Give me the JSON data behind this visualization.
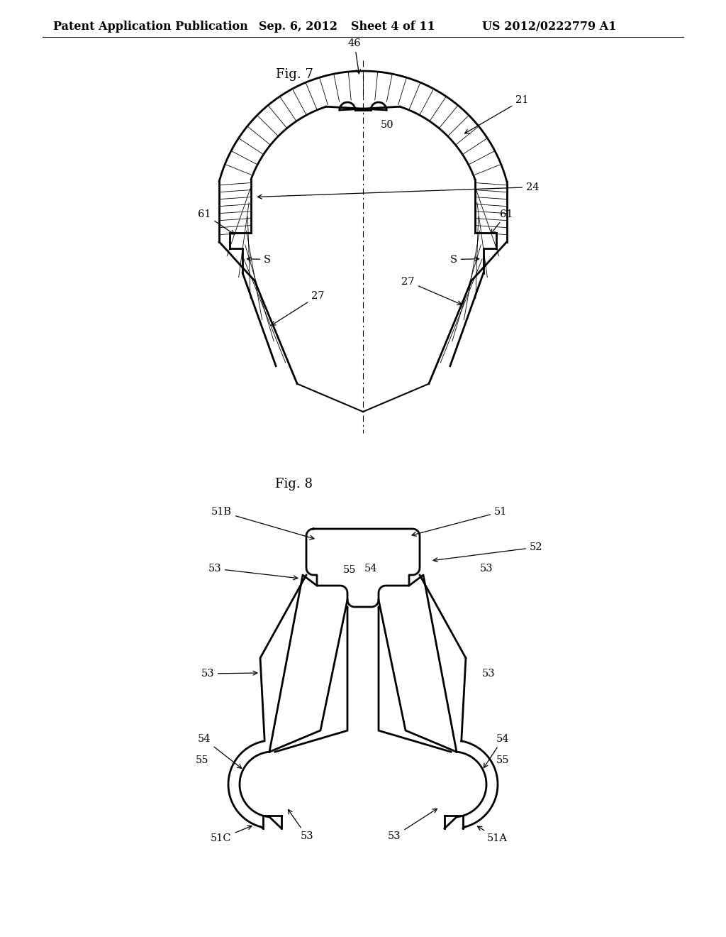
{
  "background_color": "#ffffff",
  "header_text": "Patent Application Publication",
  "header_date": "Sep. 6, 2012",
  "header_sheet": "Sheet 4 of 11",
  "header_patent": "US 2012/0222779 A1",
  "fig7_title": "Fig. 7",
  "fig8_title": "Fig. 8",
  "line_color": "#000000",
  "label_fontsize": 10.5,
  "header_fontsize": 11.5,
  "title_fontsize": 13
}
